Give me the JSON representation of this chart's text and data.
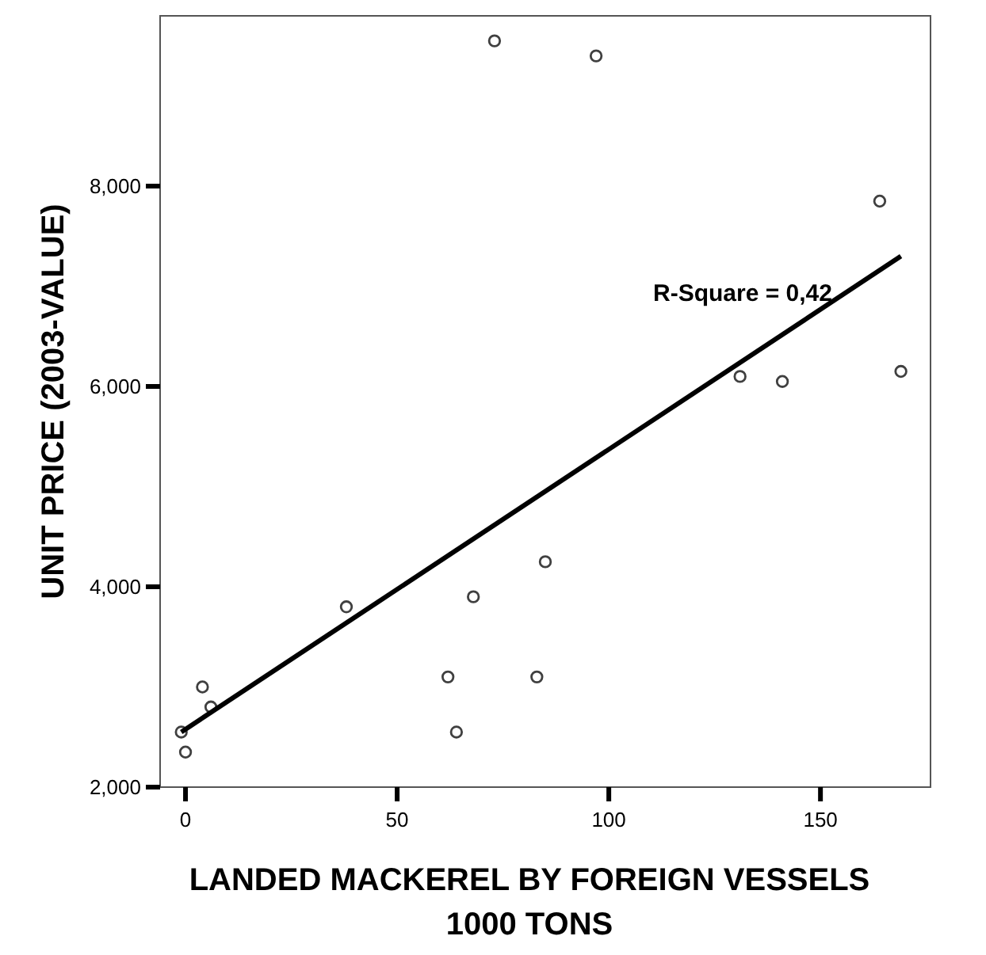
{
  "chart_data": {
    "type": "scatter",
    "xlabel": "LANDED MACKEREL BY FOREIGN VESSELS\n1000 TONS",
    "ylabel": "UNIT PRICE (2003-VALUE)",
    "series": [
      {
        "color": "#404040",
        "x": [
          -1,
          0,
          4,
          6,
          38,
          62,
          64,
          68,
          73,
          83,
          85,
          97,
          131,
          141,
          164,
          169
        ],
        "values": [
          2550,
          2350,
          3000,
          2800,
          3800,
          3100,
          2550,
          3900,
          9450,
          3100,
          4250,
          9300,
          6100,
          6050,
          7850,
          6150
        ]
      },
      {
        "type": "line",
        "marker": "none",
        "color": "#000000",
        "x": [
          -1,
          169
        ],
        "values": [
          2550,
          7300
        ]
      }
    ],
    "marker": "circle",
    "annotations": [
      "R-Square = 0,42"
    ],
    "xlim": [
      -6,
      176
    ],
    "ylim": [
      2000,
      9700
    ],
    "xticks": [
      0,
      50,
      100,
      150
    ],
    "yticks": [
      {
        "value": 2000,
        "label": "2,000"
      },
      {
        "value": 4000,
        "label": "4,000"
      },
      {
        "value": 6000,
        "label": "6,000"
      },
      {
        "value": 8000,
        "label": "8,000"
      }
    ],
    "grid": false
  }
}
